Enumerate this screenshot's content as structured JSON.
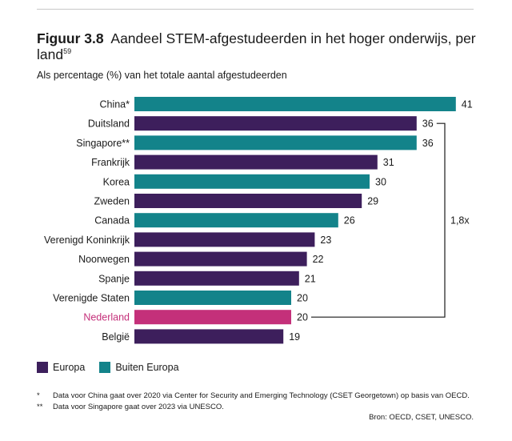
{
  "figure": {
    "label": "Figuur 3.8",
    "title": "Aandeel STEM-afgestudeerden in het hoger onderwijs, per land",
    "title_sup": "59",
    "subtitle": "Als percentage (%) van het totale aantal afgestudeerden"
  },
  "colors": {
    "europa": "#3d1f5c",
    "buiten_europa": "#13838a",
    "nederland": "#c4307a",
    "label_nederland": "#c4307a"
  },
  "legend": {
    "europa": "Europa",
    "buiten_europa": "Buiten Europa"
  },
  "chart_data": {
    "type": "bar",
    "orientation": "horizontal",
    "categories": [
      "China*",
      "Duitsland",
      "Singapore**",
      "Frankrijk",
      "Korea",
      "Zweden",
      "Canada",
      "Verenigd Koninkrijk",
      "Noorwegen",
      "Spanje",
      "Verenigde Staten",
      "Nederland",
      "België"
    ],
    "values": [
      41,
      36,
      36,
      31,
      30,
      29,
      26,
      23,
      22,
      21,
      20,
      20,
      19
    ],
    "groups": [
      "buiten_europa",
      "europa",
      "buiten_europa",
      "europa",
      "buiten_europa",
      "europa",
      "buiten_europa",
      "europa",
      "europa",
      "europa",
      "buiten_europa",
      "nederland",
      "europa"
    ],
    "value_labels": [
      "41",
      "36",
      "36",
      "31",
      "30",
      "29",
      "26",
      "23",
      "22",
      "21",
      "20",
      "20",
      "19"
    ],
    "annotation": {
      "text": "1,8x",
      "from_category": "Duitsland",
      "to_category": "Nederland"
    },
    "xlim": [
      0,
      41
    ],
    "grid": false,
    "legend_position": "bottom-left"
  },
  "notes": [
    {
      "mark": "*",
      "text": "Data voor China gaat over 2020 via Center for Security and Emerging Technology (CSET Georgetown) op basis van OECD."
    },
    {
      "mark": "**",
      "text": "Data voor Singapore gaat over 2023 via UNESCO."
    }
  ],
  "source": "Bron: OECD, CSET, UNESCO."
}
